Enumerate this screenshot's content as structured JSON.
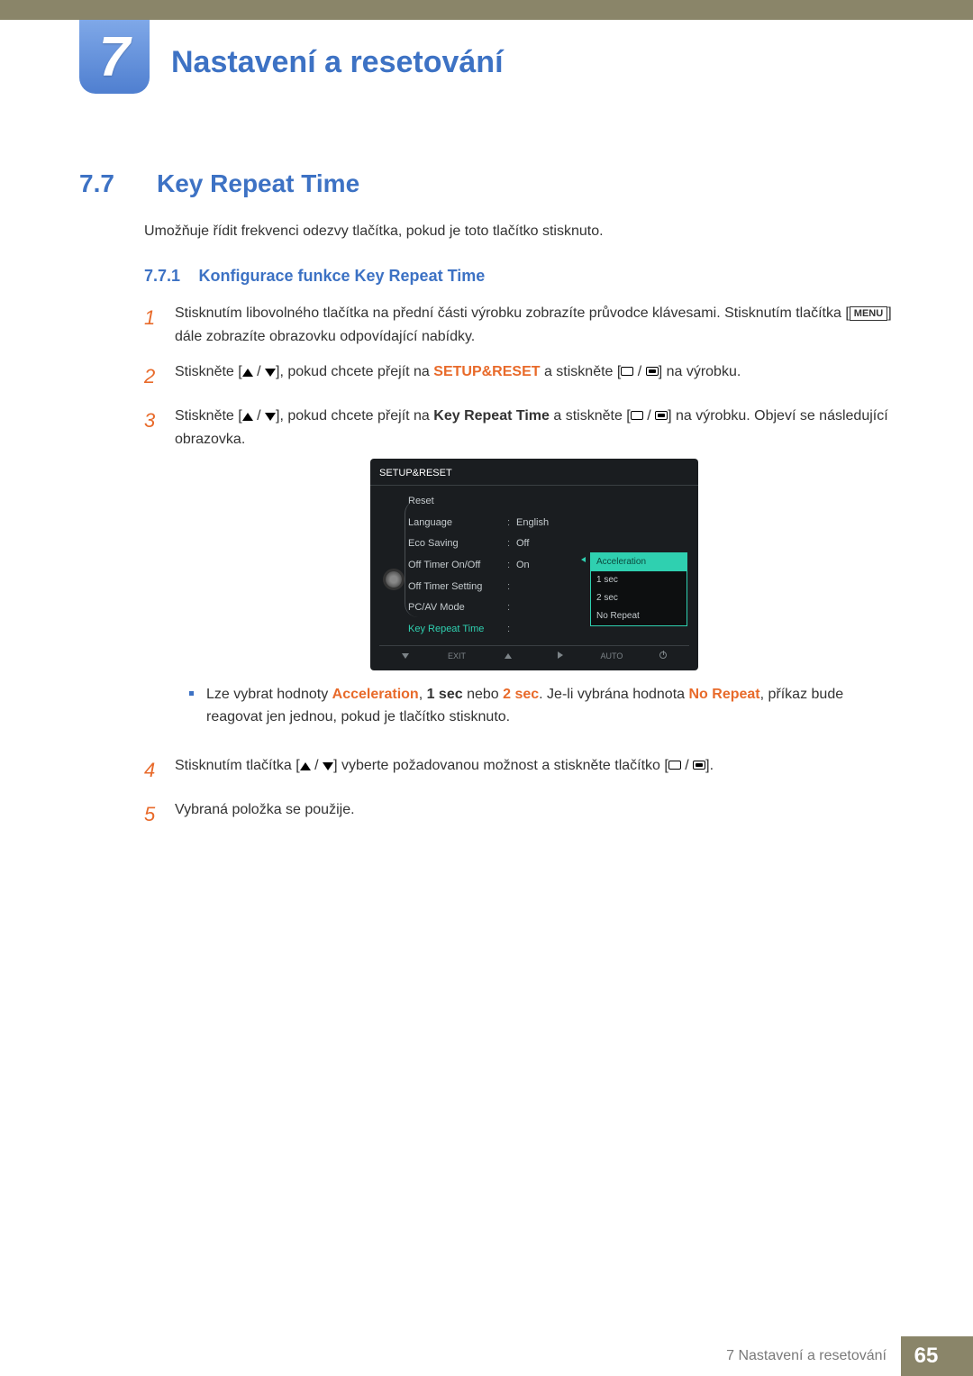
{
  "colors": {
    "brand_blue": "#3d72c4",
    "accent_orange": "#e86a2a",
    "top_band": "#8a8569",
    "osd_bg": "#1a1d20",
    "osd_teal": "#2fd0b0"
  },
  "chapter": {
    "number": "7",
    "title": "Nastavení a resetování"
  },
  "section": {
    "num": "7.7",
    "title": "Key Repeat Time",
    "intro": "Umožňuje řídit frekvenci odezvy tlačítka, pokud je toto tlačítko stisknuto."
  },
  "subsection": {
    "num": "7.7.1",
    "title": "Konfigurace funkce Key Repeat Time"
  },
  "steps": {
    "s1": {
      "num": "1",
      "a": "Stisknutím libovolného tlačítka na přední části výrobku zobrazíte průvodce klávesami. Stisknutím tlačítka [",
      "menu": "MENU",
      "b": "] dále zobrazíte obrazovku odpovídající nabídky."
    },
    "s2": {
      "num": "2",
      "a": "Stiskněte [",
      "b": "], pokud chcete přejít na ",
      "hl": "SETUP&RESET",
      "c": " a stiskněte [",
      "d": "] na výrobku."
    },
    "s3": {
      "num": "3",
      "a": "Stiskněte [",
      "b": "], pokud chcete přejít na ",
      "hl": "Key Repeat Time",
      "c": " a stiskněte [",
      "d": "] na výrobku. Objeví se následující obrazovka."
    },
    "s4": {
      "num": "4",
      "a": "Stisknutím tlačítka [",
      "b": "] vyberte požadovanou možnost a stiskněte tlačítko [",
      "c": "]."
    },
    "s5": {
      "num": "5",
      "text": "Vybraná položka se použije."
    }
  },
  "bullet": {
    "a": "Lze vybrat hodnoty ",
    "hl1": "Acceleration",
    "sep1": ", ",
    "hl2": "1 sec",
    "mid": " nebo ",
    "hl3": "2 sec",
    "b": ". Je-li vybrána hodnota ",
    "hl4": "No Repeat",
    "c": ", příkaz bude reagovat jen jednou, pokud je tlačítko stisknuto."
  },
  "osd": {
    "title": "SETUP&RESET",
    "rows": [
      {
        "label": "Reset",
        "val": ""
      },
      {
        "label": "Language",
        "val": "English"
      },
      {
        "label": "Eco Saving",
        "val": "Off"
      },
      {
        "label": "Off Timer On/Off",
        "val": "On"
      },
      {
        "label": "Off Timer Setting",
        "val": ""
      },
      {
        "label": "PC/AV Mode",
        "val": ""
      },
      {
        "label": "Key Repeat Time",
        "val": ""
      }
    ],
    "options": [
      "Acceleration",
      "1 sec",
      "2 sec",
      "No Repeat"
    ],
    "foot": {
      "exit": "EXIT",
      "auto": "AUTO"
    }
  },
  "footer": {
    "text": "7 Nastavení a resetování",
    "page": "65"
  }
}
